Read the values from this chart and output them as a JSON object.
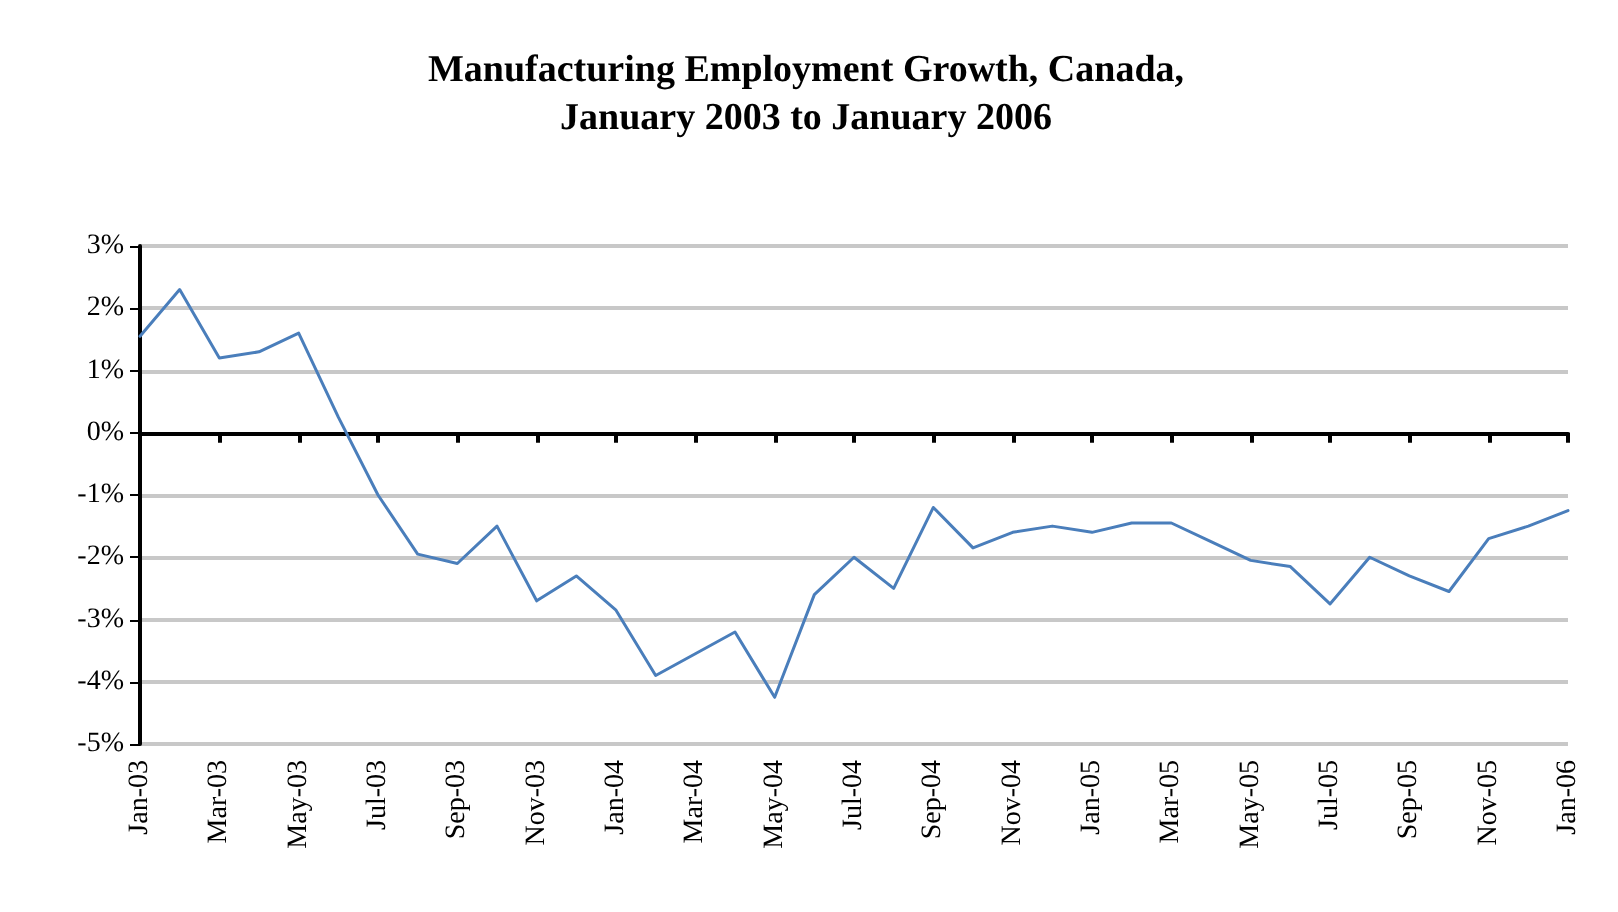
{
  "chart_data": {
    "type": "line",
    "title": "Manufacturing Employment Growth, Canada,\nJanuary 2003 to January 2006",
    "categories": [
      "Jan-03",
      null,
      "Mar-03",
      null,
      "May-03",
      null,
      "Jul-03",
      null,
      "Sep-03",
      null,
      "Nov-03",
      null,
      "Jan-04",
      null,
      "Mar-04",
      null,
      "May-04",
      null,
      "Jul-04",
      null,
      "Sep-04",
      null,
      "Nov-04",
      null,
      "Jan-05",
      null,
      "Mar-05",
      null,
      "May-05",
      null,
      "Jul-05",
      null,
      "Sep-05",
      null,
      "Nov-05",
      null,
      "Jan-06"
    ],
    "series": [
      {
        "color": "#4a7ebb",
        "values": [
          1.55,
          2.3,
          1.2,
          1.3,
          1.6,
          0.25,
          -1.0,
          -1.95,
          -2.1,
          -1.5,
          -2.7,
          -2.3,
          -2.85,
          -3.9,
          -3.55,
          -3.2,
          -4.25,
          -2.6,
          -2.0,
          -2.5,
          -1.2,
          -1.85,
          -1.6,
          -1.5,
          -1.6,
          -1.45,
          -1.45,
          -1.75,
          -2.05,
          -2.15,
          -2.75,
          -2.0,
          -2.3,
          -2.55,
          -1.7,
          -1.5,
          -1.25
        ]
      }
    ],
    "ylim": [
      -5,
      3
    ],
    "yticks": [
      {
        "value": -5,
        "label": "-5%"
      },
      {
        "value": -4,
        "label": "-4%"
      },
      {
        "value": -3,
        "label": "-3%"
      },
      {
        "value": -2,
        "label": "-2%"
      },
      {
        "value": -1,
        "label": "-1%"
      },
      {
        "value": 0,
        "label": "0%"
      },
      {
        "value": 1,
        "label": "1%"
      },
      {
        "value": 2,
        "label": "2%"
      },
      {
        "value": 3,
        "label": "3%"
      }
    ],
    "grid": "y",
    "marker": "none",
    "line_style": "solid"
  }
}
